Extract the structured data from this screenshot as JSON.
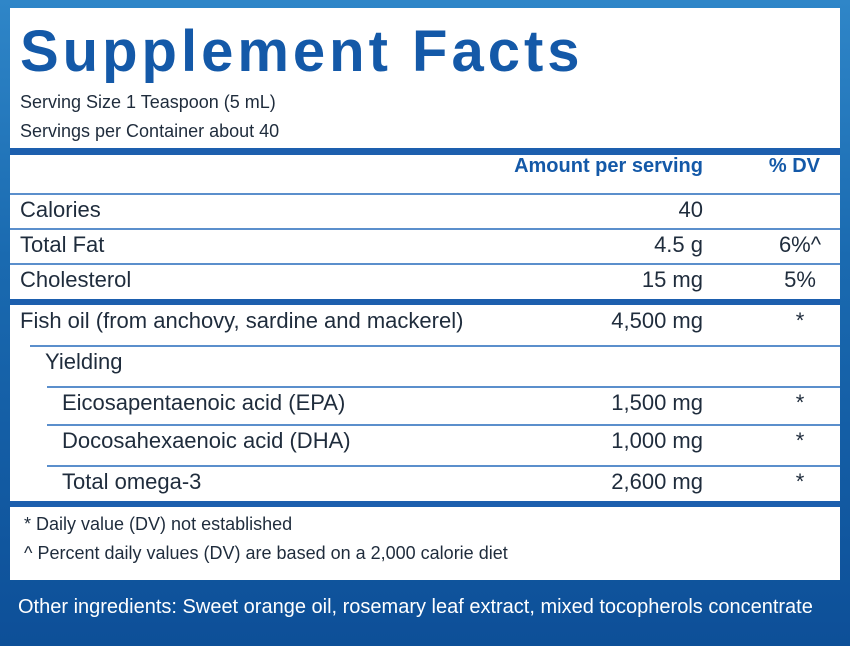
{
  "header": {
    "title": "Supplement Facts",
    "serving_size": "Serving Size 1 Teaspoon (5 mL)",
    "servings": "Servings per Container about 40"
  },
  "table": {
    "columns": [
      "Amount per serving",
      "% DV"
    ],
    "rows": [
      {
        "name": "Calories",
        "amount": "40"
      },
      {
        "name": "Total Fat",
        "amount": "4.5 g",
        "dv": "6%^"
      },
      {
        "name": "Cholesterol",
        "amount": "15 mg",
        "dv": "5%"
      },
      {
        "name": "Fish oil (from anchovy, sardine and mackerel)",
        "amount": "4,500 mg",
        "dv": "*"
      },
      {
        "name": "Yielding"
      },
      {
        "name": "Eicosapentaenoic acid (EPA)",
        "amount": "1,500 mg",
        "dv": "*"
      },
      {
        "name": "Docosahexaenoic acid (DHA)",
        "amount": "1,000 mg",
        "dv": "*"
      },
      {
        "name": "Total omega-3",
        "amount": "2,600 mg",
        "dv": "*"
      }
    ]
  },
  "footnotes": [
    "* Daily value (DV) not established",
    "^ Percent daily values (DV) are based on a 2,000 calorie diet"
  ],
  "other_ingredients": "Other ingredients: Sweet orange oil, rosemary leaf extract, mixed tocopherols concentrate"
}
